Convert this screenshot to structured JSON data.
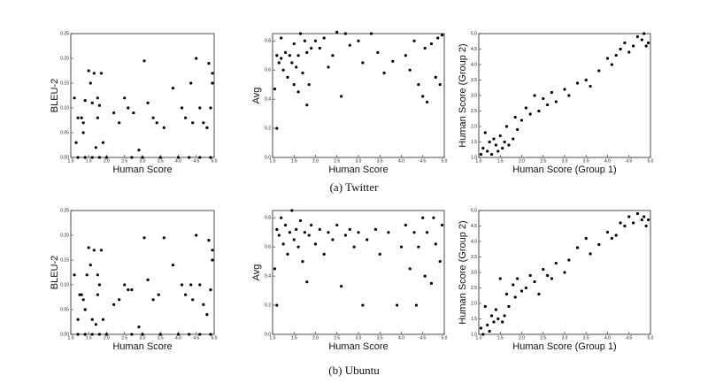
{
  "captions": [
    "(a) Twitter",
    "(b) Ubuntu"
  ],
  "chart_data": [
    {
      "type": "scatter",
      "xlabel": "Human Score",
      "ylabel": "BLEU-2",
      "color": "#000000",
      "xlim": [
        1,
        5
      ],
      "ylim": [
        0,
        0.25
      ],
      "xticks": [
        {
          "value": 1,
          "label": "1.0"
        },
        {
          "value": 1.5,
          "label": "1.5"
        },
        {
          "value": 2,
          "label": "2.0"
        },
        {
          "value": 2.5,
          "label": "2.5"
        },
        {
          "value": 3,
          "label": "3.0"
        },
        {
          "value": 3.5,
          "label": "3.5"
        },
        {
          "value": 4,
          "label": "4.0"
        },
        {
          "value": 4.5,
          "label": "4.5"
        },
        {
          "value": 5,
          "label": "5.0"
        }
      ],
      "yticks": [
        {
          "value": 0,
          "label": "0.00"
        },
        {
          "value": 0.05,
          "label": "0.05"
        },
        {
          "value": 0.1,
          "label": "0.10"
        },
        {
          "value": 0.15,
          "label": "0.15"
        },
        {
          "value": 0.2,
          "label": "0.20"
        },
        {
          "value": 0.25,
          "label": "0.25"
        }
      ],
      "x": [
        1.1,
        1.15,
        1.2,
        1.3,
        1.35,
        1.35,
        1.4,
        1.5,
        1.55,
        1.6,
        1.65,
        1.7,
        1.75,
        1.75,
        1.8,
        1.85,
        1.9,
        2.2,
        2.35,
        2.5,
        2.6,
        2.75,
        2.9,
        3.05,
        3.15,
        3.3,
        3.4,
        3.6,
        3.85,
        4.1,
        4.2,
        4.35,
        4.4,
        4.5,
        4.6,
        4.7,
        4.8,
        4.85,
        4.9,
        4.95,
        4.95,
        1.2,
        1.4,
        1.6,
        1.8,
        2.0,
        2.7,
        3.0,
        3.5,
        4.0,
        4.3,
        4.6,
        4.9
      ],
      "values": [
        0.12,
        0.03,
        0.08,
        0.08,
        0.05,
        0.07,
        0.115,
        0.175,
        0.15,
        0.11,
        0.17,
        0.02,
        0.08,
        0.12,
        0.105,
        0.17,
        0.03,
        0.09,
        0.07,
        0.12,
        0.1,
        0.09,
        0.015,
        0.195,
        0.11,
        0.08,
        0.07,
        0.06,
        0.14,
        0.1,
        0.08,
        0.15,
        0.07,
        0.2,
        0.1,
        0.07,
        0.06,
        0.19,
        0.1,
        0.17,
        0.15,
        0,
        0,
        0,
        0,
        0,
        0,
        0,
        0,
        0,
        0,
        0,
        0
      ]
    },
    {
      "type": "scatter",
      "xlabel": "Human Score",
      "ylabel": "Avg",
      "color": "#000000",
      "xlim": [
        1,
        5
      ],
      "ylim": [
        0,
        0.85
      ],
      "xticks": [
        {
          "value": 1,
          "label": "1.0"
        },
        {
          "value": 1.5,
          "label": "1.5"
        },
        {
          "value": 2,
          "label": "2.0"
        },
        {
          "value": 2.5,
          "label": "2.5"
        },
        {
          "value": 3,
          "label": "3.0"
        },
        {
          "value": 3.5,
          "label": "3.5"
        },
        {
          "value": 4,
          "label": "4.0"
        },
        {
          "value": 4.5,
          "label": "4.5"
        },
        {
          "value": 5,
          "label": "5.0"
        }
      ],
      "yticks": [
        {
          "value": 0,
          "label": "0.0"
        },
        {
          "value": 0.2,
          "label": "0.2"
        },
        {
          "value": 0.4,
          "label": "0.4"
        },
        {
          "value": 0.6,
          "label": "0.6"
        },
        {
          "value": 0.8,
          "label": "0.8"
        }
      ],
      "x": [
        1.05,
        1.1,
        1.1,
        1.15,
        1.2,
        1.2,
        1.25,
        1.3,
        1.35,
        1.4,
        1.45,
        1.5,
        1.5,
        1.55,
        1.6,
        1.6,
        1.65,
        1.7,
        1.75,
        1.8,
        1.8,
        1.85,
        1.9,
        2.0,
        2.1,
        2.2,
        2.3,
        2.4,
        2.5,
        2.6,
        2.7,
        2.8,
        3.0,
        3.1,
        3.3,
        3.45,
        3.6,
        3.8,
        4.1,
        4.2,
        4.3,
        4.4,
        4.5,
        4.55,
        4.6,
        4.7,
        4.8,
        4.85,
        4.9,
        4.95
      ],
      "values": [
        0.47,
        0.2,
        0.7,
        0.65,
        0.68,
        0.82,
        0.6,
        0.72,
        0.55,
        0.7,
        0.65,
        0.78,
        0.5,
        0.62,
        0.7,
        0.45,
        0.85,
        0.58,
        0.8,
        0.72,
        0.36,
        0.5,
        0.75,
        0.8,
        0.75,
        0.82,
        0.62,
        0.7,
        0.86,
        0.42,
        0.85,
        0.77,
        0.8,
        0.65,
        0.85,
        0.72,
        0.58,
        0.66,
        0.7,
        0.6,
        0.8,
        0.5,
        0.42,
        0.75,
        0.38,
        0.78,
        0.55,
        0.82,
        0.5,
        0.84
      ]
    },
    {
      "type": "scatter",
      "xlabel": "Human Score (Group 1)",
      "ylabel": "Human Score (Group 2)",
      "color": "#000000",
      "xlim": [
        1,
        5
      ],
      "ylim": [
        1,
        5
      ],
      "xticks": [
        {
          "value": 1,
          "label": "1.0"
        },
        {
          "value": 1.5,
          "label": "1.5"
        },
        {
          "value": 2,
          "label": "2.0"
        },
        {
          "value": 2.5,
          "label": "2.5"
        },
        {
          "value": 3,
          "label": "3.0"
        },
        {
          "value": 3.5,
          "label": "3.5"
        },
        {
          "value": 4,
          "label": "4.0"
        },
        {
          "value": 4.5,
          "label": "4.5"
        },
        {
          "value": 5,
          "label": "5.0"
        }
      ],
      "yticks": [
        {
          "value": 1,
          "label": "1.0"
        },
        {
          "value": 1.5,
          "label": "1.5"
        },
        {
          "value": 2,
          "label": "2.0"
        },
        {
          "value": 2.5,
          "label": "2.5"
        },
        {
          "value": 3,
          "label": "3.0"
        },
        {
          "value": 3.5,
          "label": "3.5"
        },
        {
          "value": 4,
          "label": "4.0"
        },
        {
          "value": 4.5,
          "label": "4.5"
        },
        {
          "value": 5,
          "label": "5.0"
        }
      ],
      "x": [
        1.05,
        1.1,
        1.15,
        1.2,
        1.25,
        1.3,
        1.35,
        1.4,
        1.45,
        1.5,
        1.55,
        1.6,
        1.65,
        1.7,
        1.8,
        1.85,
        1.9,
        2.0,
        2.1,
        2.2,
        2.3,
        2.4,
        2.5,
        2.6,
        2.7,
        2.8,
        3.0,
        3.1,
        3.3,
        3.5,
        3.6,
        3.8,
        4.0,
        4.1,
        4.2,
        4.3,
        4.4,
        4.5,
        4.6,
        4.7,
        4.8,
        4.85,
        4.9,
        4.95
      ],
      "values": [
        1.1,
        1.3,
        1.8,
        1.2,
        1.5,
        1.1,
        1.6,
        1.4,
        1.2,
        1.7,
        1.3,
        1.5,
        2.0,
        1.4,
        1.6,
        2.3,
        1.9,
        2.2,
        2.6,
        2.4,
        3.0,
        2.5,
        2.9,
        2.7,
        3.1,
        2.8,
        3.2,
        3.0,
        3.4,
        3.5,
        3.3,
        3.8,
        4.2,
        4.0,
        4.3,
        4.5,
        4.7,
        4.4,
        4.6,
        4.9,
        4.8,
        5.0,
        4.6,
        4.7
      ]
    },
    {
      "type": "scatter",
      "xlabel": "Human Score",
      "ylabel": "BLEU-2",
      "color": "#000000",
      "xlim": [
        1,
        5
      ],
      "ylim": [
        0,
        0.25
      ],
      "xticks": [
        {
          "value": 1,
          "label": "1.0"
        },
        {
          "value": 1.5,
          "label": "1.5"
        },
        {
          "value": 2,
          "label": "2.0"
        },
        {
          "value": 2.5,
          "label": "2.5"
        },
        {
          "value": 3,
          "label": "3.0"
        },
        {
          "value": 3.5,
          "label": "3.5"
        },
        {
          "value": 4,
          "label": "4.0"
        },
        {
          "value": 4.5,
          "label": "4.5"
        },
        {
          "value": 5,
          "label": "5.0"
        }
      ],
      "yticks": [
        {
          "value": 0,
          "label": "0.00"
        },
        {
          "value": 0.05,
          "label": "0.05"
        },
        {
          "value": 0.1,
          "label": "0.10"
        },
        {
          "value": 0.15,
          "label": "0.15"
        },
        {
          "value": 0.2,
          "label": "0.20"
        },
        {
          "value": 0.25,
          "label": "0.25"
        }
      ],
      "x": [
        1.1,
        1.2,
        1.25,
        1.3,
        1.4,
        1.35,
        1.45,
        1.5,
        1.55,
        1.6,
        1.65,
        1.7,
        1.75,
        1.75,
        1.8,
        1.85,
        1.9,
        2.2,
        2.35,
        2.5,
        2.6,
        2.7,
        2.9,
        3.05,
        3.15,
        3.3,
        3.45,
        3.6,
        3.85,
        4.1,
        4.2,
        4.35,
        4.4,
        4.5,
        4.6,
        4.7,
        4.8,
        4.85,
        4.9,
        4.95,
        4.95,
        1.2,
        1.4,
        1.6,
        1.8,
        2.0,
        2.7,
        3.0,
        3.5,
        4.0,
        4.3,
        4.6,
        4.9
      ],
      "values": [
        0.12,
        0.03,
        0.08,
        0.08,
        0.05,
        0.07,
        0.12,
        0.175,
        0.14,
        0.03,
        0.17,
        0.02,
        0.08,
        0.12,
        0.1,
        0.17,
        0.03,
        0.06,
        0.07,
        0.1,
        0.09,
        0.09,
        0.015,
        0.195,
        0.11,
        0.07,
        0.08,
        0.195,
        0.14,
        0.1,
        0.08,
        0.1,
        0.07,
        0.2,
        0.1,
        0.06,
        0.04,
        0.19,
        0.09,
        0.17,
        0.15,
        0,
        0,
        0,
        0,
        0,
        0,
        0,
        0,
        0,
        0,
        0,
        0
      ]
    },
    {
      "type": "scatter",
      "xlabel": "Human Score",
      "ylabel": "Avg",
      "color": "#000000",
      "xlim": [
        1,
        5
      ],
      "ylim": [
        0,
        0.85
      ],
      "xticks": [
        {
          "value": 1,
          "label": "1.0"
        },
        {
          "value": 1.5,
          "label": "1.5"
        },
        {
          "value": 2,
          "label": "2.0"
        },
        {
          "value": 2.5,
          "label": "2.5"
        },
        {
          "value": 3,
          "label": "3.0"
        },
        {
          "value": 3.5,
          "label": "3.5"
        },
        {
          "value": 4,
          "label": "4.0"
        },
        {
          "value": 4.5,
          "label": "4.5"
        },
        {
          "value": 5,
          "label": "5.0"
        }
      ],
      "yticks": [
        {
          "value": 0,
          "label": "0.0"
        },
        {
          "value": 0.2,
          "label": "0.2"
        },
        {
          "value": 0.4,
          "label": "0.4"
        },
        {
          "value": 0.6,
          "label": "0.6"
        },
        {
          "value": 0.8,
          "label": "0.8"
        }
      ],
      "x": [
        1.05,
        1.1,
        1.1,
        1.15,
        1.2,
        1.25,
        1.3,
        1.35,
        1.4,
        1.45,
        1.5,
        1.55,
        1.6,
        1.65,
        1.7,
        1.75,
        1.8,
        1.85,
        1.9,
        2.0,
        2.1,
        2.2,
        2.3,
        2.4,
        2.5,
        2.6,
        2.7,
        2.8,
        2.9,
        3.0,
        3.1,
        3.2,
        3.4,
        3.5,
        3.7,
        3.9,
        4.0,
        4.1,
        4.2,
        4.3,
        4.35,
        4.4,
        4.5,
        4.55,
        4.6,
        4.7,
        4.75,
        4.8,
        4.9,
        4.95
      ],
      "values": [
        0.45,
        0.2,
        0.72,
        0.68,
        0.8,
        0.62,
        0.75,
        0.55,
        0.7,
        0.85,
        0.65,
        0.72,
        0.6,
        0.78,
        0.5,
        0.7,
        0.36,
        0.68,
        0.75,
        0.62,
        0.72,
        0.55,
        0.7,
        0.65,
        0.75,
        0.33,
        0.68,
        0.72,
        0.6,
        0.7,
        0.2,
        0.65,
        0.72,
        0.55,
        0.7,
        0.2,
        0.6,
        0.75,
        0.45,
        0.7,
        0.2,
        0.6,
        0.8,
        0.4,
        0.7,
        0.35,
        0.8,
        0.62,
        0.5,
        0.75
      ]
    },
    {
      "type": "scatter",
      "xlabel": "Human Score (Group 1)",
      "ylabel": "Human Score (Group 2)",
      "color": "#000000",
      "xlim": [
        1,
        5
      ],
      "ylim": [
        1,
        5
      ],
      "xticks": [
        {
          "value": 1,
          "label": "1.0"
        },
        {
          "value": 1.5,
          "label": "1.5"
        },
        {
          "value": 2,
          "label": "2.0"
        },
        {
          "value": 2.5,
          "label": "2.5"
        },
        {
          "value": 3,
          "label": "3.0"
        },
        {
          "value": 3.5,
          "label": "3.5"
        },
        {
          "value": 4,
          "label": "4.0"
        },
        {
          "value": 4.5,
          "label": "4.5"
        },
        {
          "value": 5,
          "label": "5.0"
        }
      ],
      "yticks": [
        {
          "value": 1,
          "label": "1.0"
        },
        {
          "value": 1.5,
          "label": "1.5"
        },
        {
          "value": 2,
          "label": "2.0"
        },
        {
          "value": 2.5,
          "label": "2.5"
        },
        {
          "value": 3,
          "label": "3.0"
        },
        {
          "value": 3.5,
          "label": "3.5"
        },
        {
          "value": 4,
          "label": "4.0"
        },
        {
          "value": 4.5,
          "label": "4.5"
        },
        {
          "value": 5,
          "label": "5.0"
        }
      ],
      "x": [
        1.05,
        1.1,
        1.15,
        1.2,
        1.25,
        1.3,
        1.35,
        1.4,
        1.45,
        1.5,
        1.55,
        1.6,
        1.65,
        1.7,
        1.8,
        1.85,
        1.9,
        2.0,
        2.1,
        2.2,
        2.3,
        2.4,
        2.5,
        2.6,
        2.7,
        2.8,
        3.0,
        3.1,
        3.3,
        3.5,
        3.6,
        3.8,
        4.0,
        4.1,
        4.2,
        4.3,
        4.4,
        4.5,
        4.6,
        4.7,
        4.8,
        4.85,
        4.9,
        4.95
      ],
      "values": [
        1.2,
        1.0,
        1.9,
        1.3,
        1.1,
        1.6,
        1.4,
        1.8,
        1.5,
        2.8,
        1.4,
        1.6,
        2.3,
        1.9,
        2.6,
        2.2,
        2.8,
        2.4,
        2.5,
        2.9,
        2.7,
        2.3,
        3.1,
        2.9,
        2.8,
        3.3,
        3.0,
        3.4,
        3.8,
        4.1,
        3.6,
        3.9,
        4.3,
        4.1,
        4.2,
        4.6,
        4.5,
        4.8,
        4.6,
        4.9,
        4.7,
        4.8,
        4.5,
        4.7
      ]
    }
  ]
}
